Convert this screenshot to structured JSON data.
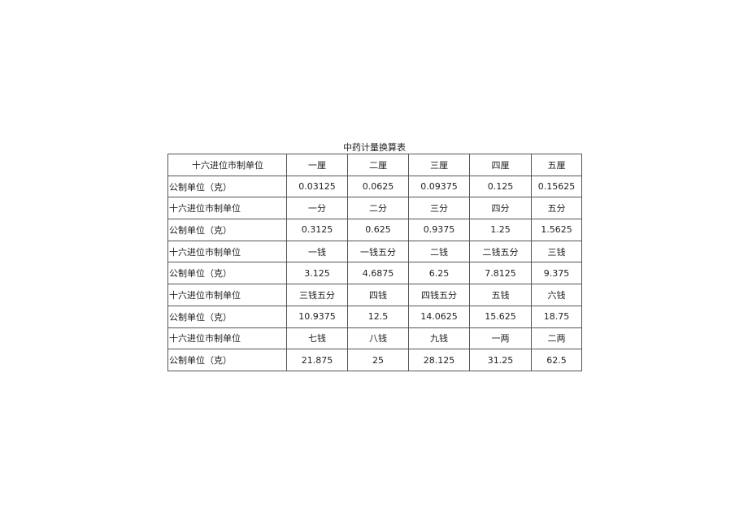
{
  "title": "中药计量换算表",
  "rows": [
    {
      "label": "十六进位市制单位",
      "cells": [
        "一厘",
        "二厘",
        "三厘",
        "四厘",
        "五厘"
      ]
    },
    {
      "label": "公制单位（克）",
      "cells": [
        "0.03125",
        "0.0625",
        "0.09375",
        "0.125",
        "0.15625"
      ]
    },
    {
      "label": "十六进位市制单位",
      "cells": [
        "一分",
        "二分",
        "三分",
        "四分",
        "五分"
      ]
    },
    {
      "label": "公制单位（克）",
      "cells": [
        "0.3125",
        "0.625",
        "0.9375",
        "1.25",
        "1.5625"
      ]
    },
    {
      "label": "十六进位市制单位",
      "cells": [
        "一钱",
        "一钱五分",
        "二钱",
        "二钱五分",
        "三钱"
      ]
    },
    {
      "label": "公制单位（克）",
      "cells": [
        "3.125",
        "4.6875",
        "6.25",
        "7.8125",
        "9.375"
      ]
    },
    {
      "label": "十六进位市制单位",
      "cells": [
        "三钱五分",
        "四钱",
        "四钱五分",
        "五钱",
        "六钱"
      ]
    },
    {
      "label": "公制单位（克）",
      "cells": [
        "10.9375",
        "12.5",
        "14.0625",
        "15.625",
        "18.75"
      ]
    },
    {
      "label": "十六进位市制单位",
      "cells": [
        "七钱",
        "八钱",
        "九钱",
        "一两",
        "二两"
      ]
    },
    {
      "label": "公制单位（克）",
      "cells": [
        "21.875",
        "25",
        "28.125",
        "31.25",
        "62.5"
      ]
    }
  ]
}
